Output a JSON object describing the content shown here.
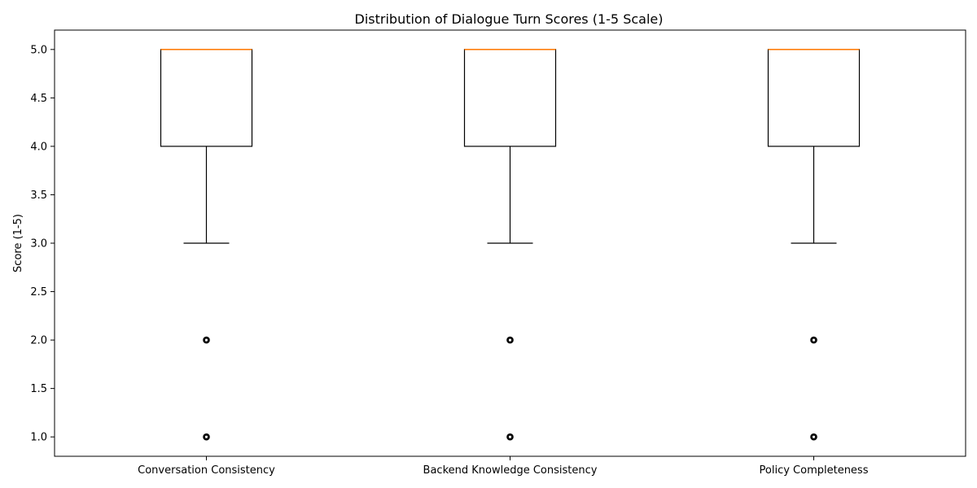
{
  "chart_data": {
    "type": "box",
    "title": "Distribution of Dialogue Turn Scores (1-5 Scale)",
    "xlabel": "",
    "ylabel": "Score (1-5)",
    "ylim": [
      0.8,
      5.2
    ],
    "yticks": [
      1.0,
      1.5,
      2.0,
      2.5,
      3.0,
      3.5,
      4.0,
      4.5,
      5.0
    ],
    "ytick_labels": [
      "1.0",
      "1.5",
      "2.0",
      "2.5",
      "3.0",
      "3.5",
      "4.0",
      "4.5",
      "5.0"
    ],
    "grid": false,
    "categories": [
      "Conversation Consistency",
      "Backend Knowledge Consistency",
      "Policy Completeness"
    ],
    "boxes": [
      {
        "category": "Conversation Consistency",
        "whisker_low": 3.0,
        "q1": 4.0,
        "median": 5.0,
        "q3": 5.0,
        "whisker_high": 5.0,
        "outliers": [
          2.0,
          1.0
        ]
      },
      {
        "category": "Backend Knowledge Consistency",
        "whisker_low": 3.0,
        "q1": 4.0,
        "median": 5.0,
        "q3": 5.0,
        "whisker_high": 5.0,
        "outliers": [
          2.0,
          1.0
        ]
      },
      {
        "category": "Policy Completeness",
        "whisker_low": 3.0,
        "q1": 4.0,
        "median": 5.0,
        "q3": 5.0,
        "whisker_high": 5.0,
        "outliers": [
          2.0,
          1.0
        ]
      }
    ],
    "colors": {
      "box": "#000000",
      "median": "#ff7f0e",
      "outlier": "#000000"
    }
  }
}
